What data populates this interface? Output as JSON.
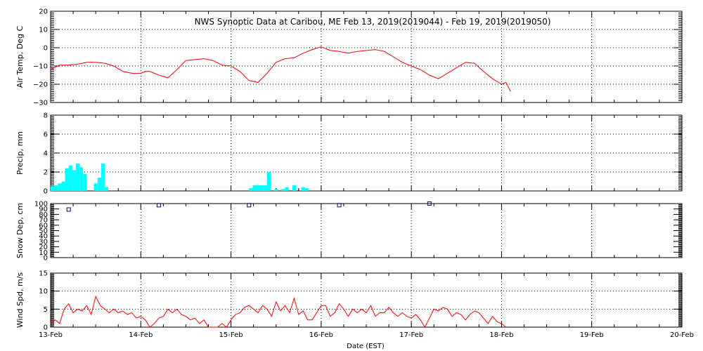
{
  "title": "NWS Synoptic Data at Caribou, ME   Feb 13, 2019(2019044) - Feb 19, 2019(2019050)",
  "x_axis": {
    "label": "Date (EST)",
    "ticks": [
      "13-Feb",
      "14-Feb",
      "15-Feb",
      "16-Feb",
      "17-Feb",
      "18-Feb",
      "19-Feb",
      "20-Feb"
    ],
    "range_days": [
      0,
      7
    ]
  },
  "colors": {
    "line": "#ff0000",
    "bar": "#00ffff",
    "marker": "#000080",
    "axis": "#000000"
  },
  "chart_data": [
    {
      "type": "line",
      "name": "air-temp",
      "ylabel": "Air Temp, Deg C",
      "ylim": [
        -30,
        20
      ],
      "yticks": [
        -30,
        -20,
        -10,
        0,
        10,
        20
      ],
      "xgrid": true,
      "ygrid": true,
      "x": [
        0,
        0.1,
        0.2,
        0.3,
        0.4,
        0.5,
        0.6,
        0.7,
        0.8,
        0.9,
        1.0,
        1.05,
        1.1,
        1.2,
        1.3,
        1.4,
        1.5,
        1.6,
        1.7,
        1.8,
        1.9,
        2.0,
        2.1,
        2.2,
        2.3,
        2.4,
        2.5,
        2.6,
        2.7,
        2.8,
        2.9,
        3.0,
        3.1,
        3.2,
        3.3,
        3.4,
        3.5,
        3.6,
        3.7,
        3.8,
        3.9,
        4.0,
        4.1,
        4.2,
        4.3,
        4.4,
        4.5,
        4.6,
        4.7,
        4.8,
        4.9,
        5.0,
        5.05,
        5.1
      ],
      "y": [
        -12,
        -9.5,
        -9.5,
        -9,
        -8,
        -8,
        -8.5,
        -10,
        -13,
        -14,
        -14,
        -13,
        -13,
        -15,
        -16.5,
        -12,
        -7,
        -6.5,
        -6,
        -7,
        -9.5,
        -10,
        -13,
        -18,
        -19,
        -14,
        -8,
        -6,
        -5.5,
        -3,
        -1,
        0.5,
        -1.5,
        -2,
        -3,
        -2,
        -1.5,
        -1,
        -2,
        -5,
        -8,
        -10,
        -12,
        -15,
        -17,
        -14,
        -11,
        -8,
        -8.5,
        -13,
        -17,
        -20,
        -19,
        -24
      ]
    },
    {
      "type": "bar",
      "name": "precip",
      "ylabel": "Precip, mm",
      "ylim": [
        0,
        8
      ],
      "yticks": [
        0,
        2,
        4,
        6,
        8
      ],
      "xgrid": true,
      "ygrid": true,
      "bar_width_days": 0.04,
      "x": [
        0.02,
        0.06,
        0.1,
        0.14,
        0.18,
        0.22,
        0.26,
        0.3,
        0.34,
        0.38,
        0.5,
        0.54,
        0.58,
        0.62,
        2.22,
        2.26,
        2.3,
        2.34,
        2.38,
        2.42,
        2.5,
        2.58,
        2.62,
        2.7,
        2.8,
        2.84
      ],
      "values": [
        0.5,
        0.6,
        0.8,
        1.0,
        2.4,
        2.7,
        2.2,
        2.9,
        2.5,
        1.8,
        0.8,
        1.4,
        2.9,
        0.4,
        0.3,
        0.6,
        0.6,
        0.6,
        0.6,
        2.0,
        0.2,
        0.2,
        0.4,
        0.6,
        0.4,
        0.3
      ]
    },
    {
      "type": "scatter",
      "name": "snow-depth",
      "ylabel": "Snow Dep, cm",
      "ylim": [
        0,
        100
      ],
      "yticks": [
        0,
        10,
        20,
        30,
        40,
        50,
        60,
        70,
        80,
        90,
        100
      ],
      "xgrid": true,
      "ygrid": false,
      "x": [
        0.2,
        1.2,
        2.2,
        3.2,
        4.2
      ],
      "y": [
        89,
        97,
        97,
        97,
        100
      ]
    },
    {
      "type": "line",
      "name": "wind-speed",
      "ylabel": "Wind Spd, m/s",
      "ylim": [
        0,
        15
      ],
      "yticks": [
        0,
        5,
        10,
        15
      ],
      "xgrid": true,
      "ygrid": true,
      "x": [
        0,
        0.05,
        0.1,
        0.15,
        0.2,
        0.25,
        0.3,
        0.35,
        0.4,
        0.45,
        0.5,
        0.55,
        0.6,
        0.65,
        0.7,
        0.75,
        0.8,
        0.85,
        0.9,
        0.95,
        1.0,
        1.05,
        1.1,
        1.15,
        1.2,
        1.25,
        1.3,
        1.35,
        1.4,
        1.45,
        1.5,
        1.55,
        1.6,
        1.65,
        1.7,
        1.75,
        1.8,
        1.85,
        1.9,
        1.95,
        2.0,
        2.05,
        2.1,
        2.15,
        2.2,
        2.25,
        2.3,
        2.35,
        2.4,
        2.45,
        2.5,
        2.55,
        2.6,
        2.65,
        2.7,
        2.75,
        2.8,
        2.85,
        2.9,
        2.95,
        3.0,
        3.05,
        3.1,
        3.15,
        3.2,
        3.25,
        3.3,
        3.35,
        3.4,
        3.45,
        3.5,
        3.55,
        3.6,
        3.65,
        3.7,
        3.75,
        3.8,
        3.85,
        3.9,
        3.95,
        4.0,
        4.05,
        4.1,
        4.15,
        4.2,
        4.25,
        4.3,
        4.35,
        4.4,
        4.45,
        4.5,
        4.55,
        4.6,
        4.65,
        4.7,
        4.75,
        4.8,
        4.85,
        4.9,
        4.95,
        5.0,
        5.05
      ],
      "y": [
        1,
        2,
        1,
        5,
        6.5,
        4,
        5,
        4.5,
        6,
        3.5,
        8.5,
        6,
        5,
        4,
        5,
        4,
        4.5,
        3.5,
        4,
        2.5,
        3,
        2,
        0,
        1,
        2.5,
        3,
        5,
        4,
        5,
        3.5,
        3,
        2,
        2.5,
        1,
        2,
        0,
        0,
        0,
        1,
        0,
        2,
        3.5,
        4,
        5.5,
        6,
        5,
        4,
        6,
        5,
        3,
        7,
        4.5,
        6,
        4,
        8,
        3.5,
        4.5,
        2,
        2,
        4,
        6,
        6,
        3,
        4,
        6.5,
        5,
        3,
        5,
        4,
        5,
        4,
        6,
        3,
        4,
        4,
        5.5,
        4,
        3,
        4,
        3,
        2.5,
        3.5,
        2,
        0,
        2.5,
        5,
        4.5,
        5.5,
        5,
        3,
        4,
        3.5,
        2,
        3.5,
        4.5,
        4,
        2.5,
        1,
        3,
        1.5,
        1,
        0
      ]
    }
  ]
}
